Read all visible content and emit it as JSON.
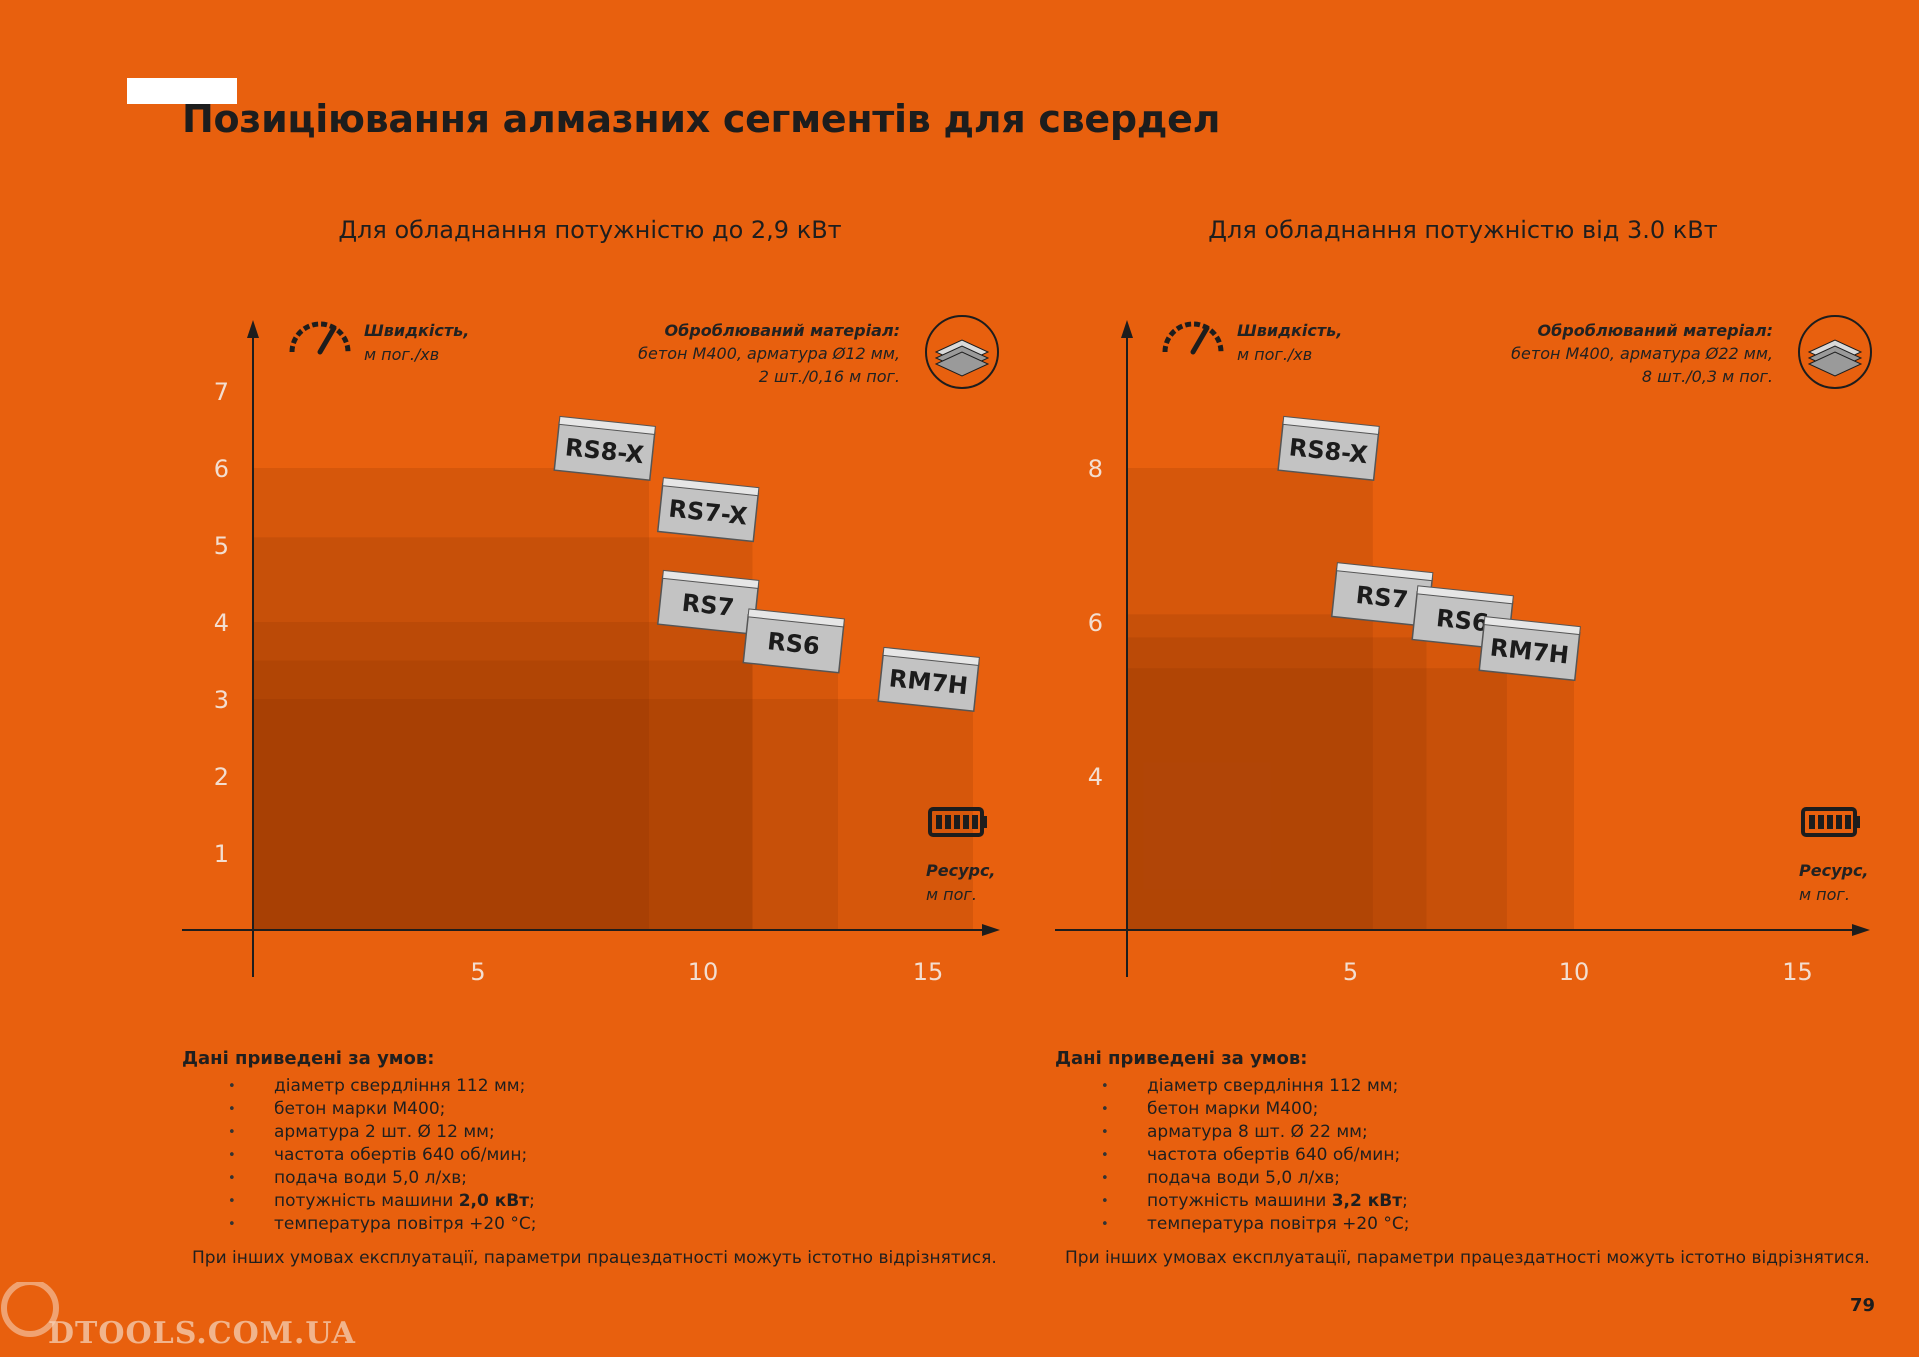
{
  "page": {
    "title": "Позиціювання алмазних сегментів для свердел",
    "page_number": "79",
    "watermark": "DTOOLS.COM.UA"
  },
  "colors": {
    "background": "#e8600e",
    "segment_fill": "#c3c3c3",
    "segment_top": "#e6e6e6",
    "text": "#1d1d1d"
  },
  "chart_data": [
    {
      "type": "bar",
      "title": "Для обладнання потужністю до 2,9 кВт",
      "ylabel_bold": "Швидкість,",
      "ylabel_unit": "м пог./хв",
      "xlabel_bold": "Ресурс,",
      "xlabel_unit": "м пог.",
      "material_bold": "Оброблюваний матеріал:",
      "material_lines": [
        "бетон М400, арматура Ø12 мм,",
        "2 шт./0,16 м пог."
      ],
      "xlim": [
        -1,
        16.8
      ],
      "ylim": [
        0,
        7.1
      ],
      "xticks": [
        5,
        10,
        15
      ],
      "yticks": [
        1,
        2,
        3,
        4,
        5,
        6,
        7
      ],
      "grid": false,
      "legend": "none",
      "series": [
        {
          "name": "RS8-X",
          "resource": 8.8,
          "speed": 6.0
        },
        {
          "name": "RS7-X",
          "resource": 11.1,
          "speed": 5.1
        },
        {
          "name": "RS7",
          "resource": 11.1,
          "speed": 4.0
        },
        {
          "name": "RS6",
          "resource": 13.0,
          "speed": 3.5
        },
        {
          "name": "RM7H",
          "resource": 16.0,
          "speed": 3.0
        }
      ]
    },
    {
      "type": "bar",
      "title": "Для обладнання потужністю від 3.0 кВт",
      "ylabel_bold": "Швидкість,",
      "ylabel_unit": "м пог./хв",
      "xlabel_bold": "Ресурс,",
      "xlabel_unit": "м пог.",
      "material_bold": "Оброблюваний матеріал:",
      "material_lines": [
        "бетон М400, арматура Ø22 мм,",
        "8 шт./0,3 м пог."
      ],
      "xlim": [
        -0.5,
        16.6
      ],
      "ylim": [
        2,
        9.8
      ],
      "xticks": [
        5,
        10,
        15
      ],
      "yticks": [
        4,
        6,
        8
      ],
      "grid": false,
      "legend": "none",
      "series": [
        {
          "name": "RS8-X",
          "resource": 5.5,
          "speed": 8.0
        },
        {
          "name": "RS7",
          "resource": 6.7,
          "speed": 6.1
        },
        {
          "name": "RS6",
          "resource": 8.5,
          "speed": 5.8
        },
        {
          "name": "RM7H",
          "resource": 10.0,
          "speed": 5.4
        }
      ]
    }
  ],
  "conditions": [
    {
      "title": "Дані приведені за умов:",
      "items": [
        {
          "text": "діаметр свердління 112 мм;"
        },
        {
          "text": "бетон марки М400;"
        },
        {
          "text": "арматура 2 шт. Ø 12 мм;"
        },
        {
          "text": "частота обертів 640 об/мин;"
        },
        {
          "text": "подача води 5,0 л/хв;"
        },
        {
          "text": "потужність машини ",
          "bold": "2,0 кВт",
          "suffix": ";"
        },
        {
          "text": "температура повітря +20 °С;"
        }
      ],
      "note": "При інших умовах експлуатації, параметри працездатності можуть істотно відрізнятися."
    },
    {
      "title": "Дані приведені за умов:",
      "items": [
        {
          "text": "діаметр свердління 112 мм;"
        },
        {
          "text": "бетон марки М400;"
        },
        {
          "text": "арматура 8 шт. Ø 22 мм;"
        },
        {
          "text": "частота обертів 640 об/мин;"
        },
        {
          "text": "подача води 5,0 л/хв;"
        },
        {
          "text": "потужність машини ",
          "bold": "3,2 кВт",
          "suffix": ";"
        },
        {
          "text": "температура повітря +20 °С;"
        }
      ],
      "note": "При інших умовах експлуатації, параметри працездатності можуть істотно відрізнятися."
    }
  ]
}
